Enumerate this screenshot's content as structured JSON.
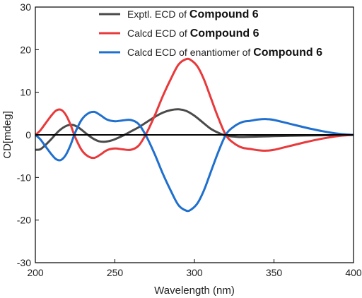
{
  "chart_data": {
    "type": "line",
    "xlabel": "Wavelength (nm)",
    "ylabel": "CD[mdeg]",
    "xlim": [
      200,
      400
    ],
    "ylim": [
      -30,
      30
    ],
    "x_ticks": [
      200,
      250,
      300,
      350,
      400
    ],
    "y_ticks": [
      -30,
      -20,
      -10,
      0,
      10,
      20,
      30
    ],
    "grid": false,
    "legend_position": "top-right",
    "zero_line": true,
    "series": [
      {
        "name_prefix": "Exptl. ECD of ",
        "name_bold": "Compound 6",
        "color": "#4a4a4a",
        "x": [
          200,
          203,
          206,
          210,
          215,
          220,
          224,
          228,
          232,
          236,
          240,
          244,
          248,
          252,
          256,
          260,
          265,
          270,
          275,
          280,
          285,
          290,
          295,
          300,
          305,
          310,
          315,
          320,
          325,
          330,
          340,
          350,
          360,
          370,
          380,
          390,
          400
        ],
        "y": [
          -3.5,
          -3.4,
          -2.5,
          -1.0,
          1.0,
          2.2,
          2.3,
          1.5,
          0.3,
          -0.8,
          -1.5,
          -1.6,
          -1.3,
          -0.7,
          0.0,
          0.8,
          1.8,
          3.0,
          4.2,
          5.2,
          5.8,
          6.0,
          5.6,
          4.5,
          3.0,
          1.5,
          0.5,
          -0.2,
          -0.4,
          -0.5,
          -0.4,
          -0.3,
          -0.2,
          -0.15,
          -0.1,
          -0.05,
          0.0
        ]
      },
      {
        "name_prefix": "Calcd ECD of ",
        "name_bold": "Compound 6",
        "color": "#e8393b",
        "x": [
          200,
          203,
          206,
          210,
          213,
          216,
          219,
          222,
          225,
          229,
          233,
          237,
          241,
          245,
          250,
          255,
          260,
          265,
          270,
          275,
          280,
          285,
          290,
          295,
          298,
          302,
          306,
          310,
          315,
          320,
          325,
          330,
          335,
          340,
          345,
          350,
          360,
          370,
          380,
          390,
          400
        ],
        "y": [
          0.0,
          1.0,
          2.5,
          4.5,
          5.7,
          5.9,
          4.8,
          2.5,
          -0.5,
          -3.5,
          -5.0,
          -5.4,
          -4.6,
          -3.6,
          -3.2,
          -3.4,
          -3.5,
          -2.5,
          0.5,
          4.5,
          9.0,
          13.0,
          16.5,
          17.8,
          17.5,
          16.0,
          13.0,
          9.0,
          4.0,
          -0.2,
          -2.0,
          -3.0,
          -3.3,
          -3.6,
          -3.7,
          -3.5,
          -2.6,
          -1.7,
          -0.9,
          -0.3,
          0.0
        ]
      },
      {
        "name_prefix": "Calcd ECD of enantiomer of ",
        "name_bold": "Compound 6",
        "color": "#1f6fce",
        "x": [
          200,
          203,
          206,
          210,
          213,
          216,
          219,
          222,
          225,
          229,
          233,
          237,
          241,
          245,
          250,
          255,
          260,
          265,
          270,
          275,
          280,
          285,
          290,
          295,
          298,
          302,
          306,
          310,
          315,
          320,
          325,
          330,
          335,
          340,
          345,
          350,
          360,
          370,
          380,
          390,
          400
        ],
        "y": [
          0.0,
          -1.0,
          -2.5,
          -4.5,
          -5.7,
          -5.9,
          -4.8,
          -2.5,
          0.5,
          3.5,
          5.0,
          5.4,
          4.6,
          3.6,
          3.2,
          3.4,
          3.5,
          2.5,
          -0.5,
          -4.5,
          -9.0,
          -13.0,
          -16.5,
          -17.8,
          -17.5,
          -16.0,
          -13.0,
          -9.0,
          -4.0,
          0.2,
          2.0,
          3.0,
          3.3,
          3.6,
          3.7,
          3.5,
          2.6,
          1.7,
          0.9,
          0.3,
          0.0
        ]
      }
    ]
  }
}
